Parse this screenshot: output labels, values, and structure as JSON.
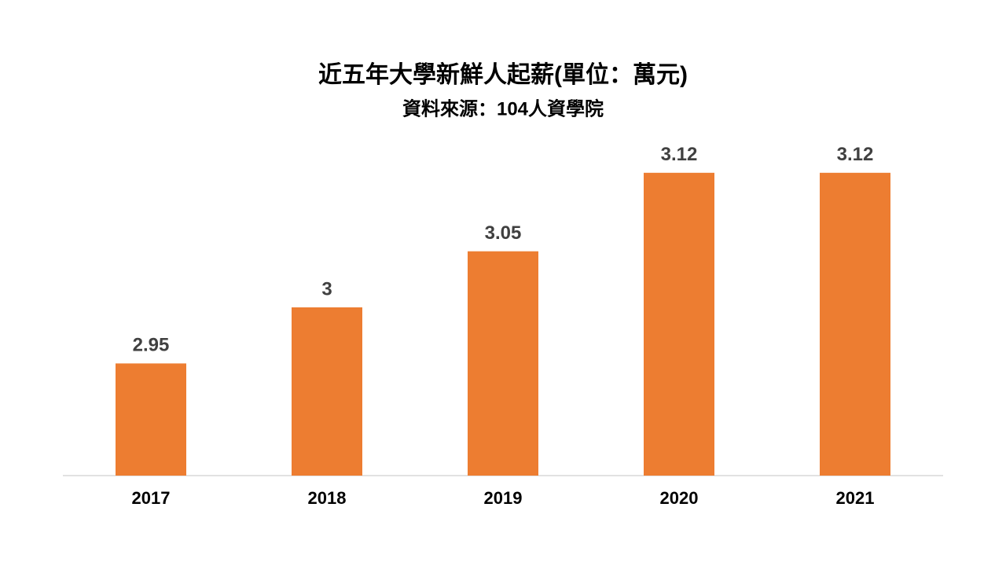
{
  "chart_data": {
    "type": "bar",
    "title": "近五年大學新鮮人起薪(單位：萬元)",
    "subtitle": "資料來源：104人資學院",
    "categories": [
      "2017",
      "2018",
      "2019",
      "2020",
      "2021"
    ],
    "values": [
      2.95,
      3,
      3.05,
      3.12,
      3.12
    ],
    "color": "#ed7d31",
    "ylim": [
      2.85,
      3.15
    ]
  }
}
